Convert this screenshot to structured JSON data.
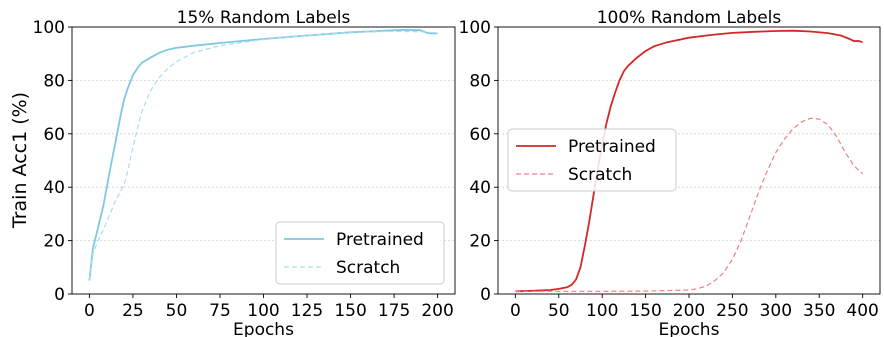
{
  "ylabel": "Train Acc1 (%)",
  "chart_data": [
    {
      "type": "line",
      "title": "15% Random Labels",
      "xlabel": "Epochs",
      "ylabel": "Train Acc1 (%)",
      "xlim": [
        -10,
        210
      ],
      "ylim": [
        0,
        100
      ],
      "xticks": [
        0,
        25,
        50,
        75,
        100,
        125,
        150,
        175,
        200
      ],
      "yticks": [
        0,
        20,
        40,
        60,
        80,
        100
      ],
      "grid": "horizontal",
      "legend_position": "lower-right",
      "series": [
        {
          "name": "Pretrained",
          "color": "#7ec8e3",
          "style": "solid",
          "x": [
            0,
            2,
            5,
            8,
            10,
            12,
            15,
            18,
            20,
            22,
            25,
            28,
            30,
            35,
            40,
            45,
            50,
            60,
            75,
            100,
            125,
            150,
            170,
            180,
            190,
            194,
            196,
            200
          ],
          "y": [
            5,
            17,
            25,
            33,
            40,
            47,
            57,
            67,
            73,
            77,
            82,
            85,
            86.5,
            88.5,
            90.3,
            91.5,
            92.2,
            93,
            94,
            95.5,
            96.8,
            98,
            98.6,
            98.9,
            98.8,
            97.8,
            97.6,
            97.6
          ]
        },
        {
          "name": "Scratch",
          "color": "#a9def0",
          "style": "dashed",
          "x": [
            0,
            2,
            5,
            10,
            15,
            20,
            22,
            25,
            28,
            30,
            35,
            40,
            45,
            50,
            60,
            75,
            100,
            125,
            150,
            175,
            190,
            200
          ],
          "y": [
            5,
            15,
            20,
            27,
            35,
            41,
            46,
            55,
            63,
            68,
            76,
            81,
            84.5,
            87,
            90.5,
            93,
            95.3,
            96.8,
            98,
            98.4,
            98.2,
            97.8
          ]
        }
      ]
    },
    {
      "type": "line",
      "title": "100% Random Labels",
      "xlabel": "Epochs",
      "xlim": [
        -20,
        420
      ],
      "ylim": [
        0,
        100
      ],
      "xticks": [
        0,
        50,
        100,
        150,
        200,
        250,
        300,
        350,
        400
      ],
      "yticks": [
        0,
        20,
        40,
        60,
        80,
        100
      ],
      "grid": "horizontal",
      "legend_position": "center-left",
      "series": [
        {
          "name": "Pretrained",
          "color": "#d62728",
          "style": "solid",
          "x": [
            0,
            20,
            40,
            50,
            60,
            65,
            70,
            75,
            80,
            85,
            90,
            95,
            100,
            105,
            110,
            115,
            120,
            125,
            130,
            135,
            140,
            150,
            160,
            175,
            200,
            225,
            250,
            275,
            300,
            320,
            340,
            360,
            375,
            385,
            390,
            395,
            400
          ],
          "y": [
            1,
            1.2,
            1.5,
            1.9,
            2.6,
            3.5,
            5.5,
            10,
            18,
            27,
            37,
            47,
            56,
            64,
            70.5,
            75.5,
            80,
            83.5,
            85.5,
            87,
            88.5,
            91,
            92.8,
            94.3,
            96,
            97,
            97.8,
            98.2,
            98.5,
            98.6,
            98.3,
            97.7,
            96.8,
            95.5,
            94.7,
            94.8,
            94.3
          ]
        },
        {
          "name": "Scratch",
          "color": "#f08080",
          "style": "dashed",
          "x": [
            0,
            50,
            100,
            150,
            200,
            210,
            220,
            230,
            240,
            250,
            260,
            270,
            280,
            290,
            300,
            310,
            320,
            330,
            340,
            350,
            360,
            370,
            380,
            390,
            400
          ],
          "y": [
            1,
            1,
            1,
            1.1,
            1.5,
            2,
            3,
            5,
            8,
            13,
            20,
            29,
            38,
            46,
            53,
            58,
            62,
            64.5,
            65.8,
            65.5,
            63.5,
            59,
            53,
            48,
            45
          ]
        }
      ]
    }
  ]
}
